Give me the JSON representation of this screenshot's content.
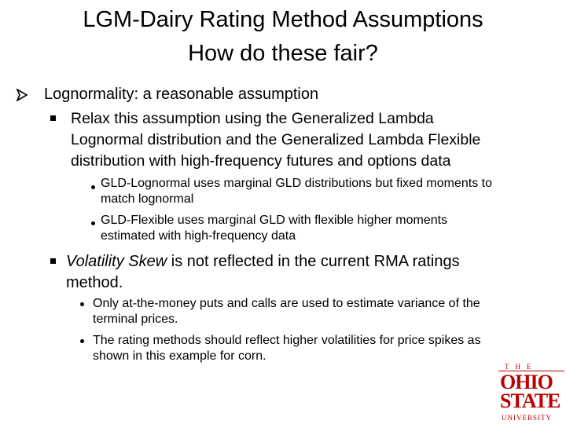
{
  "title": {
    "line1": "LGM-Dairy Rating Method Assumptions",
    "line2": "How do these fair?"
  },
  "b1": {
    "text": "Lognormality: a reasonable assumption",
    "sub": {
      "lines": [
        "Relax this assumption using the Generalized Lambda",
        "Lognormal distribution and the Generalized Lambda Flexible",
        "distribution with high-frequency futures and options data"
      ],
      "items": [
        [
          "GLD-Lognormal uses marginal GLD distributions but fixed moments to",
          "match lognormal"
        ],
        [
          "GLD-Flexible uses marginal GLD with flexible higher moments",
          "estimated with high-frequency data"
        ]
      ]
    }
  },
  "b2": {
    "italic": "Volatility Skew",
    "rest": " is not reflected in the current RMA ratings",
    "line2": "method.",
    "items": [
      [
        "Only at-the-money puts and calls are used to estimate variance of the",
        "terminal prices."
      ],
      [
        "The rating methods should reflect higher volatilities for price spikes as",
        "shown in this example for corn."
      ]
    ]
  },
  "logo": {
    "top": "THE",
    "line1": "OHIO",
    "line2": "STATE",
    "line3": "UNIVERSITY"
  },
  "colors": {
    "logo": "#bb0000"
  }
}
